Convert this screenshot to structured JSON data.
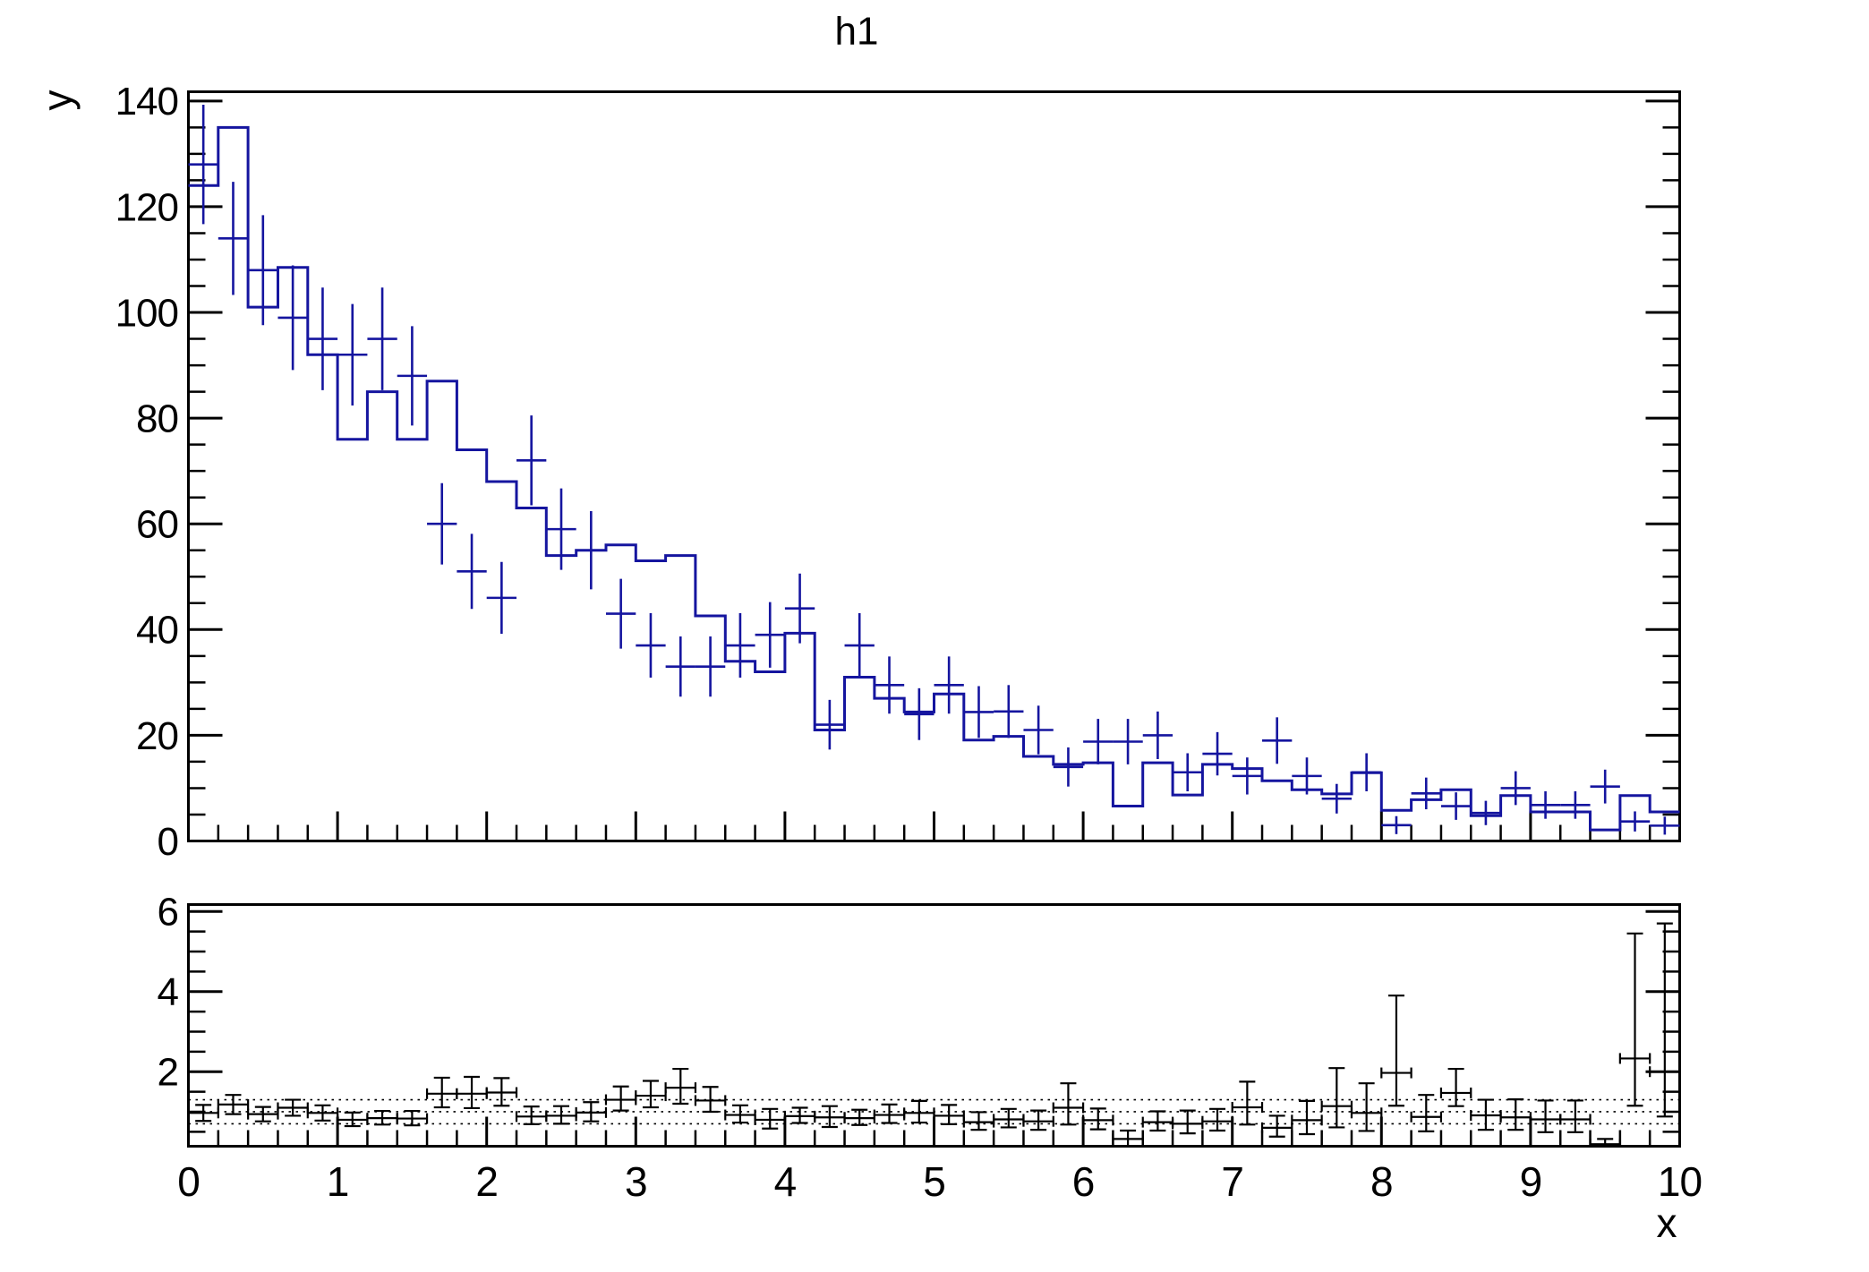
{
  "title": "h1",
  "colors": {
    "histogram": "#15159f",
    "data_points": "#15159f",
    "ratio_points": "#000000",
    "frame": "#000000",
    "background": "#ffffff"
  },
  "chart_data": {
    "type": "bar",
    "subtype": "root-ratio-plot (step histogram + error-bar points, lower data/model ratio panel)",
    "title": "h1",
    "xlabel": "x",
    "ylabel": "y",
    "main_panel": {
      "xlim": [
        0,
        10
      ],
      "ylim": [
        0,
        141.75
      ],
      "x_major_ticks": [
        0,
        1,
        2,
        3,
        4,
        5,
        6,
        7,
        8,
        9,
        10
      ],
      "x_tick_labels_shown": false,
      "x_minor_step": 0.2,
      "y_major_ticks": [
        0,
        20,
        40,
        60,
        80,
        100,
        120,
        140
      ],
      "y_minor_step": 5,
      "grid": false,
      "bin_start": 0,
      "bin_width": 0.2,
      "histogram_values": [
        124,
        135,
        101,
        108.5,
        92,
        76,
        85,
        76,
        87,
        74,
        68,
        63,
        54,
        55,
        56,
        53,
        54,
        42.6,
        34,
        32,
        39.3,
        21,
        31,
        27,
        24.4,
        27.8,
        19.1,
        19.8,
        16,
        14.5,
        14.8,
        6.6,
        14.8,
        8.7,
        14.5,
        13.7,
        11.4,
        9.7,
        8.9,
        12.9,
        5.8,
        7.8,
        9.7,
        4.8,
        8.6,
        5.5,
        5.5,
        2.1,
        8.6,
        5.5
      ],
      "point_x": [
        0.1,
        0.3,
        0.5,
        0.7,
        0.9,
        1.1,
        1.3,
        1.5,
        1.7,
        1.9,
        2.1,
        2.3,
        2.5,
        2.7,
        2.9,
        3.1,
        3.3,
        3.5,
        3.7,
        3.9,
        4.1,
        4.3,
        4.5,
        4.7,
        4.9,
        5.1,
        5.3,
        5.5,
        5.7,
        5.9,
        6.1,
        6.3,
        6.5,
        6.7,
        6.9,
        7.1,
        7.3,
        7.5,
        7.7,
        7.9,
        8.1,
        8.3,
        8.5,
        8.7,
        8.9,
        9.1,
        9.3,
        9.5,
        9.7,
        9.9
      ],
      "point_values": [
        128,
        114,
        108,
        99,
        95,
        92,
        95,
        88,
        60,
        51,
        46,
        72,
        59,
        55,
        43,
        37,
        33,
        33,
        37,
        39,
        44,
        22,
        37,
        29.5,
        24,
        29.5,
        24.4,
        24.5,
        21,
        14,
        18.8,
        18.8,
        20,
        13,
        16.5,
        12.3,
        19,
        12.3,
        8,
        13,
        3,
        9,
        6.6,
        5.3,
        10,
        6.8,
        6.8,
        10.3,
        3.7,
        2.9
      ],
      "point_errors": [
        11.3,
        10.7,
        10.4,
        9.9,
        9.7,
        9.6,
        9.7,
        9.4,
        7.7,
        7.1,
        6.8,
        8.5,
        7.7,
        7.4,
        6.6,
        6.1,
        5.7,
        5.7,
        6.1,
        6.2,
        6.6,
        4.7,
        6.1,
        5.4,
        4.9,
        5.4,
        4.9,
        5.0,
        4.6,
        3.7,
        4.3,
        4.3,
        4.5,
        3.6,
        4.1,
        3.5,
        4.4,
        3.5,
        2.8,
        3.6,
        1.7,
        3.0,
        2.6,
        2.3,
        3.2,
        2.6,
        2.6,
        3.2,
        1.9,
        1.7
      ]
    },
    "ratio_panel": {
      "xlim": [
        0,
        10
      ],
      "ylim": [
        0.139,
        6.172
      ],
      "x_major_ticks": [
        0,
        1,
        2,
        3,
        4,
        5,
        6,
        7,
        8,
        9,
        10
      ],
      "x_tick_labels": [
        "0",
        "1",
        "2",
        "3",
        "4",
        "5",
        "6",
        "7",
        "8",
        "9",
        "10"
      ],
      "x_minor_step": 0.2,
      "y_major_ticks": [
        2,
        4,
        6
      ],
      "y_minor_step": 0.5,
      "dotted_gridlines": [
        0.7,
        1.0,
        1.3
      ],
      "ratio_values": [
        0.97,
        1.18,
        0.94,
        1.1,
        0.97,
        0.8,
        0.84,
        0.83,
        1.45,
        1.45,
        1.48,
        0.88,
        0.9,
        0.98,
        1.3,
        1.4,
        1.6,
        1.28,
        0.92,
        0.8,
        0.89,
        0.86,
        0.84,
        0.92,
        0.97,
        0.9,
        0.74,
        0.81,
        0.76,
        1.1,
        0.79,
        0.32,
        0.74,
        0.7,
        0.76,
        1.11,
        0.6,
        0.79,
        1.14,
        0.97,
        1.97,
        0.87,
        1.47,
        0.91,
        0.86,
        0.81,
        0.81,
        0.19,
        2.33,
        2.0
      ],
      "ratio_err_low": [
        0.2,
        0.24,
        0.18,
        0.2,
        0.19,
        0.16,
        0.16,
        0.17,
        0.34,
        0.36,
        0.33,
        0.19,
        0.2,
        0.22,
        0.27,
        0.29,
        0.4,
        0.28,
        0.19,
        0.22,
        0.17,
        0.24,
        0.17,
        0.2,
        0.24,
        0.21,
        0.19,
        0.2,
        0.21,
        0.42,
        0.23,
        0.21,
        0.21,
        0.24,
        0.23,
        0.43,
        0.22,
        0.35,
        0.53,
        0.45,
        0.82,
        0.36,
        0.33,
        0.36,
        0.31,
        0.32,
        0.32,
        0.11,
        1.18,
        1.12
      ],
      "ratio_err_high": [
        0.2,
        0.24,
        0.18,
        0.2,
        0.19,
        0.18,
        0.18,
        0.19,
        0.4,
        0.42,
        0.36,
        0.25,
        0.24,
        0.26,
        0.33,
        0.37,
        0.47,
        0.34,
        0.24,
        0.27,
        0.21,
        0.28,
        0.21,
        0.26,
        0.3,
        0.27,
        0.25,
        0.26,
        0.27,
        0.61,
        0.29,
        0.21,
        0.27,
        0.33,
        0.31,
        0.64,
        0.3,
        0.48,
        0.95,
        0.74,
        1.93,
        0.55,
        0.6,
        0.39,
        0.45,
        0.47,
        0.47,
        0.13,
        3.12,
        3.7
      ]
    }
  }
}
